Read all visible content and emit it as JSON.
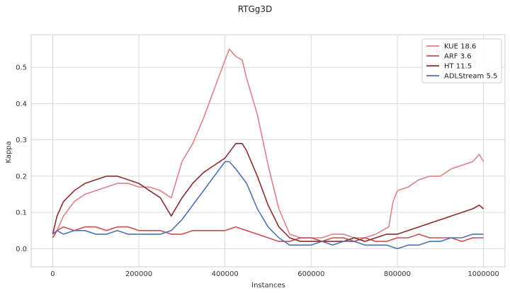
{
  "chart_data": {
    "type": "line",
    "title": "RTGg3D",
    "xlabel": "Instances",
    "ylabel": "Kappa",
    "xlim": [
      -50000,
      1050000
    ],
    "ylim": [
      -0.05,
      0.59
    ],
    "x_ticks": [
      0,
      200000,
      400000,
      600000,
      800000,
      1000000
    ],
    "x_tick_labels": [
      "0",
      "200000",
      "400000",
      "600000",
      "800000",
      "1000000"
    ],
    "y_ticks": [
      0.0,
      0.1,
      0.2,
      0.3,
      0.4,
      0.5
    ],
    "y_tick_labels": [
      "0.0",
      "0.1",
      "0.2",
      "0.3",
      "0.4",
      "0.5"
    ],
    "grid": true,
    "legend_position": "top-right",
    "series": [
      {
        "name": "KUE 18.6",
        "color": "#d98387",
        "x": [
          0,
          10000,
          25000,
          50000,
          75000,
          100000,
          125000,
          150000,
          175000,
          200000,
          225000,
          250000,
          275000,
          290000,
          300000,
          325000,
          350000,
          375000,
          400000,
          410000,
          425000,
          440000,
          450000,
          475000,
          500000,
          525000,
          550000,
          575000,
          600000,
          625000,
          650000,
          675000,
          700000,
          725000,
          750000,
          780000,
          790000,
          800000,
          825000,
          850000,
          875000,
          900000,
          925000,
          950000,
          975000,
          990000,
          1000000
        ],
        "y": [
          0.03,
          0.05,
          0.09,
          0.13,
          0.15,
          0.16,
          0.17,
          0.18,
          0.18,
          0.17,
          0.17,
          0.16,
          0.14,
          0.2,
          0.24,
          0.29,
          0.36,
          0.44,
          0.52,
          0.55,
          0.53,
          0.52,
          0.47,
          0.37,
          0.23,
          0.11,
          0.04,
          0.03,
          0.03,
          0.03,
          0.04,
          0.04,
          0.03,
          0.03,
          0.04,
          0.06,
          0.13,
          0.16,
          0.17,
          0.19,
          0.2,
          0.2,
          0.22,
          0.23,
          0.24,
          0.26,
          0.24
        ]
      },
      {
        "name": "ARF 3.6",
        "color": "#c44e52",
        "x": [
          0,
          10000,
          25000,
          50000,
          75000,
          100000,
          125000,
          150000,
          175000,
          200000,
          225000,
          250000,
          275000,
          300000,
          325000,
          350000,
          375000,
          400000,
          425000,
          450000,
          475000,
          500000,
          525000,
          550000,
          575000,
          600000,
          625000,
          650000,
          675000,
          700000,
          725000,
          750000,
          775000,
          800000,
          825000,
          850000,
          875000,
          900000,
          925000,
          950000,
          975000,
          1000000
        ],
        "y": [
          0.03,
          0.05,
          0.06,
          0.05,
          0.06,
          0.06,
          0.05,
          0.06,
          0.06,
          0.05,
          0.05,
          0.05,
          0.04,
          0.04,
          0.05,
          0.05,
          0.05,
          0.05,
          0.06,
          0.05,
          0.04,
          0.03,
          0.02,
          0.02,
          0.03,
          0.03,
          0.02,
          0.03,
          0.03,
          0.02,
          0.03,
          0.02,
          0.02,
          0.03,
          0.03,
          0.04,
          0.03,
          0.03,
          0.03,
          0.02,
          0.03,
          0.03
        ]
      },
      {
        "name": "HT 11.5",
        "color": "#8c2b30",
        "x": [
          0,
          10000,
          25000,
          50000,
          75000,
          100000,
          125000,
          150000,
          175000,
          200000,
          225000,
          250000,
          275000,
          300000,
          325000,
          350000,
          375000,
          400000,
          425000,
          440000,
          450000,
          475000,
          500000,
          525000,
          550000,
          575000,
          600000,
          625000,
          650000,
          675000,
          700000,
          725000,
          750000,
          775000,
          800000,
          825000,
          850000,
          875000,
          900000,
          925000,
          950000,
          975000,
          990000,
          1000000
        ],
        "y": [
          0.04,
          0.09,
          0.13,
          0.16,
          0.18,
          0.19,
          0.2,
          0.2,
          0.19,
          0.18,
          0.16,
          0.14,
          0.09,
          0.14,
          0.18,
          0.21,
          0.23,
          0.25,
          0.29,
          0.29,
          0.27,
          0.2,
          0.12,
          0.06,
          0.03,
          0.02,
          0.02,
          0.02,
          0.02,
          0.02,
          0.03,
          0.02,
          0.03,
          0.04,
          0.04,
          0.05,
          0.06,
          0.07,
          0.08,
          0.09,
          0.1,
          0.11,
          0.12,
          0.11
        ]
      },
      {
        "name": "ADLStream 5.5",
        "color": "#4c72b0",
        "x": [
          0,
          10000,
          25000,
          50000,
          75000,
          100000,
          125000,
          150000,
          175000,
          200000,
          225000,
          250000,
          275000,
          300000,
          325000,
          350000,
          375000,
          400000,
          410000,
          425000,
          450000,
          475000,
          500000,
          525000,
          550000,
          575000,
          600000,
          625000,
          650000,
          675000,
          700000,
          725000,
          750000,
          775000,
          800000,
          825000,
          850000,
          875000,
          900000,
          925000,
          950000,
          975000,
          1000000
        ],
        "y": [
          0.04,
          0.05,
          0.04,
          0.05,
          0.05,
          0.04,
          0.04,
          0.05,
          0.04,
          0.04,
          0.04,
          0.04,
          0.05,
          0.08,
          0.12,
          0.16,
          0.2,
          0.24,
          0.24,
          0.22,
          0.18,
          0.11,
          0.06,
          0.03,
          0.01,
          0.01,
          0.01,
          0.02,
          0.01,
          0.02,
          0.02,
          0.01,
          0.01,
          0.01,
          0.0,
          0.01,
          0.01,
          0.02,
          0.02,
          0.03,
          0.03,
          0.04,
          0.04
        ]
      }
    ]
  }
}
